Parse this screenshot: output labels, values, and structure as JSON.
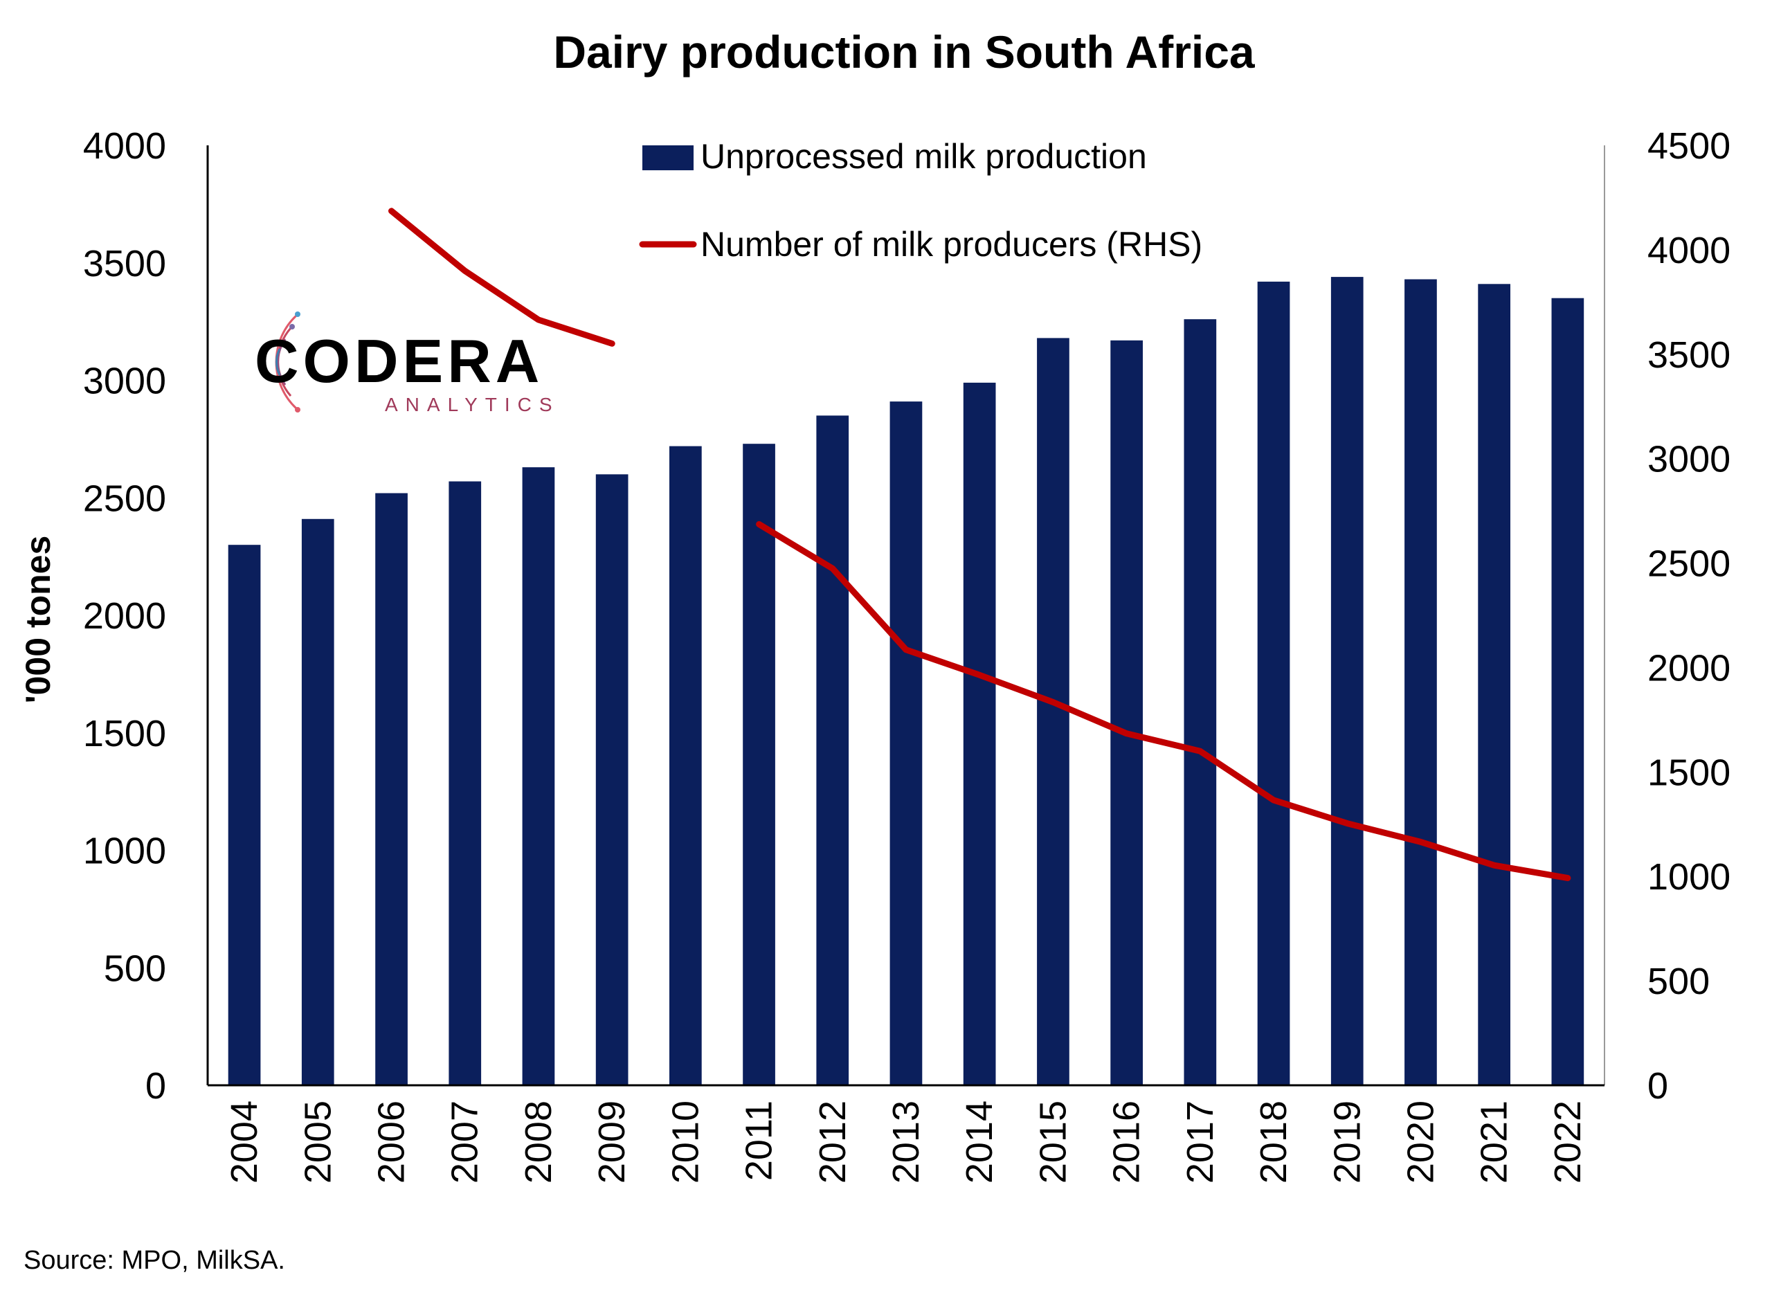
{
  "chart_data": {
    "type": "bar",
    "title": "Dairy production in South Africa",
    "ylabel": "'000 tones",
    "y2label": "",
    "xlabel": "",
    "categories": [
      "2004",
      "2005",
      "2006",
      "2007",
      "2008",
      "2009",
      "2010",
      "2011",
      "2012",
      "2013",
      "2014",
      "2015",
      "2016",
      "2017",
      "2018",
      "2019",
      "2020",
      "2021",
      "2022"
    ],
    "ylim": [
      0,
      4000
    ],
    "yticks": [
      "0",
      "500",
      "1000",
      "1500",
      "2000",
      "2500",
      "3000",
      "3500",
      "4000"
    ],
    "y2lim": [
      0,
      4500
    ],
    "y2ticks": [
      "0",
      "500",
      "1000",
      "1500",
      "2000",
      "2500",
      "3000",
      "3500",
      "4000",
      "4500"
    ],
    "grid": false,
    "legend_position": "top-center",
    "series": [
      {
        "name": "Unprocessed milk production",
        "type": "bar",
        "axis": "left",
        "color": "#0b1f5c",
        "values": [
          2300,
          2410,
          2520,
          2570,
          2630,
          2600,
          2720,
          2730,
          2850,
          2910,
          2990,
          3180,
          3170,
          3260,
          3420,
          3440,
          3430,
          3410,
          3350
        ]
      },
      {
        "name": "Number of milk producers (RHS)",
        "type": "line",
        "axis": "right",
        "color": "#c00000",
        "values": [
          null,
          null,
          4186,
          3899,
          3665,
          3551,
          null,
          2686,
          2474,
          2085,
          1964,
          1834,
          1684,
          1600,
          1365,
          1254,
          1165,
          1053,
          992
        ]
      }
    ]
  },
  "logo": {
    "name": "CODERA",
    "tagline": "ANALYTICS"
  },
  "source": "Source: MPO, MilkSA."
}
